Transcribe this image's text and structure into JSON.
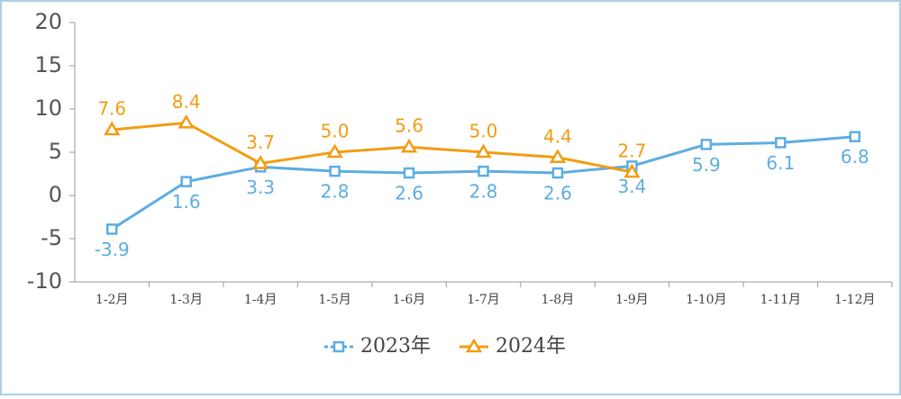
{
  "chart_data": {
    "type": "line",
    "categories": [
      "1-2月",
      "1-3月",
      "1-4月",
      "1-5月",
      "1-6月",
      "1-7月",
      "1-8月",
      "1-9月",
      "1-10月",
      "1-11月",
      "1-12月"
    ],
    "series": [
      {
        "name": "2023年",
        "color": "#5dade2",
        "marker": "square",
        "values": [
          -3.9,
          1.6,
          3.3,
          2.8,
          2.6,
          2.8,
          2.6,
          3.4,
          5.9,
          6.1,
          6.8
        ],
        "value_labels": [
          "-3.9",
          "1.6",
          "3.3",
          "2.8",
          "2.6",
          "2.8",
          "2.6",
          "3.4",
          "5.9",
          "6.1",
          "6.8"
        ]
      },
      {
        "name": "2024年",
        "color": "#f39c12",
        "marker": "triangle",
        "values": [
          7.6,
          8.4,
          3.7,
          5.0,
          5.6,
          5.0,
          4.4,
          2.7,
          null,
          null,
          null
        ],
        "value_labels": [
          "7.6",
          "8.4",
          "3.7",
          "5.0",
          "5.6",
          "5.0",
          "4.4",
          "2.7",
          null,
          null,
          null
        ]
      }
    ],
    "ylim": [
      -10,
      20
    ],
    "yticks": [
      -10,
      -5,
      0,
      5,
      10,
      15,
      20
    ],
    "grid": false,
    "legend": "bottom"
  }
}
